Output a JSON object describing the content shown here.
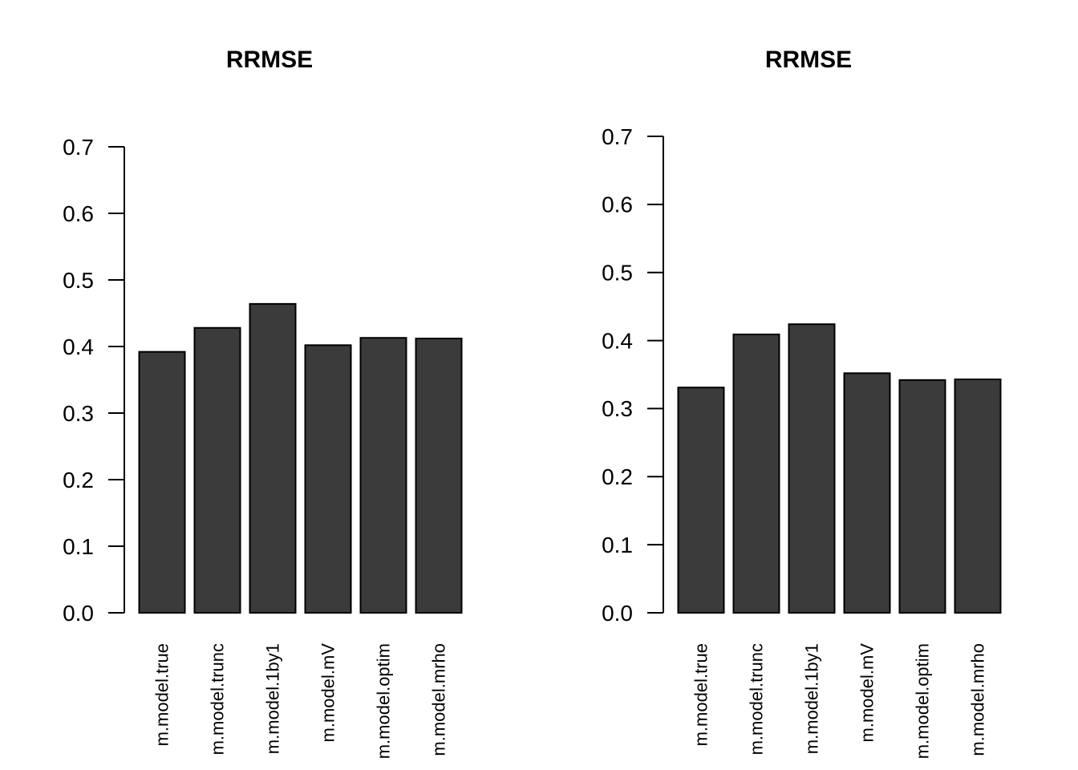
{
  "figure": {
    "background_color": "#ffffff",
    "text_color": "#000000"
  },
  "chart_data": [
    {
      "type": "bar",
      "title": "RRMSE",
      "xlabel": "",
      "ylabel": "",
      "categories": [
        "m.model.true",
        "m.model.trunc",
        "m.model.1by1",
        "m.model.mV",
        "m.model.optim",
        "m.model.mrho"
      ],
      "values": [
        0.392,
        0.428,
        0.464,
        0.402,
        0.413,
        0.412
      ],
      "ylim": [
        0,
        0.7
      ],
      "yticks": [
        0.0,
        0.1,
        0.2,
        0.3,
        0.4,
        0.5,
        0.6,
        0.7
      ],
      "ytick_labels": [
        "0.0",
        "0.1",
        "0.2",
        "0.3",
        "0.4",
        "0.5",
        "0.6",
        "0.7"
      ],
      "grid": false,
      "legend_position": "none",
      "bar_color": "#3b3b3b",
      "bar_border_color": "#000000",
      "axis_color": "#000000"
    },
    {
      "type": "bar",
      "title": "RRMSE",
      "xlabel": "",
      "ylabel": "",
      "categories": [
        "m.model.true",
        "m.model.trunc",
        "m.model.1by1",
        "m.model.mV",
        "m.model.optim",
        "m.model.mrho"
      ],
      "values": [
        0.331,
        0.409,
        0.424,
        0.352,
        0.342,
        0.343
      ],
      "ylim": [
        0,
        0.7
      ],
      "yticks": [
        0.0,
        0.1,
        0.2,
        0.3,
        0.4,
        0.5,
        0.6,
        0.7
      ],
      "ytick_labels": [
        "0.0",
        "0.1",
        "0.2",
        "0.3",
        "0.4",
        "0.5",
        "0.6",
        "0.7"
      ],
      "grid": false,
      "legend_position": "none",
      "bar_color": "#3b3b3b",
      "bar_border_color": "#000000",
      "axis_color": "#000000"
    }
  ]
}
